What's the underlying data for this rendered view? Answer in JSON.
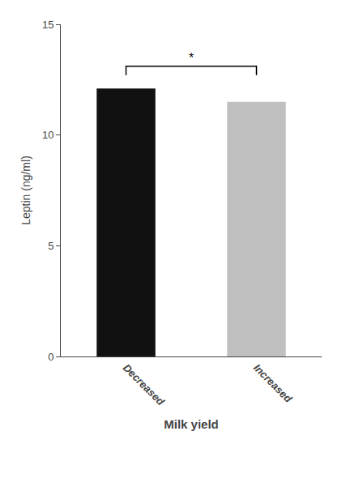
{
  "chart_data": {
    "type": "bar",
    "categories": [
      "Decreased",
      "Increased"
    ],
    "values": [
      12.1,
      11.5
    ],
    "colors": [
      "#111111",
      "#c0c0c0"
    ],
    "xlabel": "Milk yield",
    "ylabel": "Leptin (ng/ml)",
    "ylim": [
      0,
      15
    ],
    "yticks": [
      0,
      5,
      10,
      15
    ],
    "grid": false,
    "annotation": "*"
  }
}
